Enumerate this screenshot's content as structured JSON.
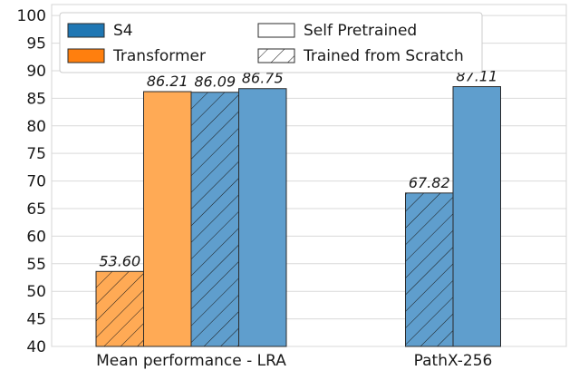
{
  "chart_data": {
    "type": "bar",
    "categories": [
      "Mean performance - LRA",
      "PathX-256"
    ],
    "ylim": [
      40,
      102
    ],
    "yticks": [
      40,
      45,
      50,
      55,
      60,
      65,
      70,
      75,
      80,
      85,
      90,
      95,
      100
    ],
    "grid": true,
    "legend_placement": "top-left",
    "legend": [
      {
        "label": "S4",
        "kind": "color",
        "color": "#1f77b4"
      },
      {
        "label": "Transformer",
        "kind": "color",
        "color": "#ff7f0e"
      },
      {
        "label": "Self Pretrained",
        "kind": "style",
        "hatch": false
      },
      {
        "label": "Trained from Scratch",
        "kind": "style",
        "hatch": true
      }
    ],
    "bars": [
      {
        "category": 0,
        "model": "Transformer",
        "training": "Trained from Scratch",
        "value": 53.6,
        "label": "53.60",
        "color": "#ff7f0e",
        "hatch": true
      },
      {
        "category": 0,
        "model": "Transformer",
        "training": "Self Pretrained",
        "value": 86.21,
        "label": "86.21",
        "color": "#ff7f0e",
        "hatch": false
      },
      {
        "category": 0,
        "model": "S4",
        "training": "Trained from Scratch",
        "value": 86.09,
        "label": "86.09",
        "color": "#1f77b4",
        "hatch": true
      },
      {
        "category": 0,
        "model": "S4",
        "training": "Self Pretrained",
        "value": 86.75,
        "label": "86.75",
        "color": "#1f77b4",
        "hatch": false
      },
      {
        "category": 1,
        "model": "S4",
        "training": "Trained from Scratch",
        "value": 67.82,
        "label": "67.82",
        "color": "#1f77b4",
        "hatch": true
      },
      {
        "category": 1,
        "model": "S4",
        "training": "Self Pretrained",
        "value": 87.11,
        "label": "87.11",
        "color": "#1f77b4",
        "hatch": false
      }
    ]
  }
}
